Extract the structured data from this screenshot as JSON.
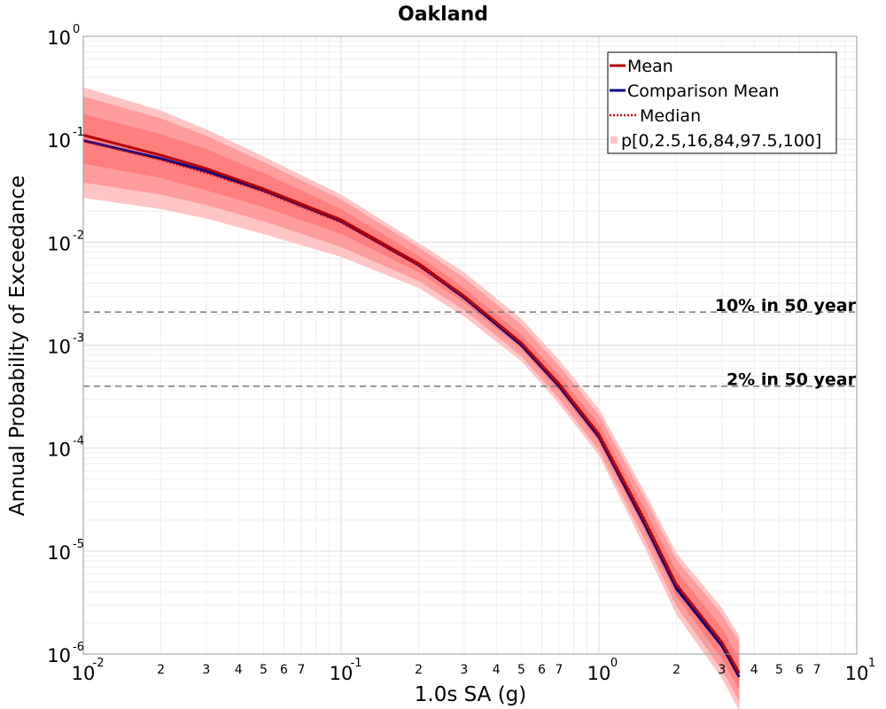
{
  "chart_data": {
    "type": "line",
    "title": "Oakland",
    "xlabel": "1.0s SA (g)",
    "ylabel": "Annual Probability of Exceedance",
    "x_scale": "log",
    "y_scale": "log",
    "xlim": [
      0.01,
      10
    ],
    "ylim": [
      1e-06,
      1
    ],
    "grid": true,
    "legend_position": "top-right",
    "x_ticks": [
      {
        "value": 0.01,
        "base": "10",
        "exp": "-2"
      },
      {
        "value": 0.1,
        "base": "10",
        "exp": "-1"
      },
      {
        "value": 1,
        "base": "10",
        "exp": "0"
      },
      {
        "value": 10,
        "base": "10",
        "exp": "1"
      }
    ],
    "x_minor_labels": [
      "2",
      "3",
      "4",
      "5",
      "6",
      "7"
    ],
    "y_ticks": [
      {
        "value": 1,
        "base": "10",
        "exp": "0"
      },
      {
        "value": 0.1,
        "base": "10",
        "exp": "-1"
      },
      {
        "value": 0.01,
        "base": "10",
        "exp": "-2"
      },
      {
        "value": 0.001,
        "base": "10",
        "exp": "-3"
      },
      {
        "value": 0.0001,
        "base": "10",
        "exp": "-4"
      },
      {
        "value": 1e-05,
        "base": "10",
        "exp": "-5"
      },
      {
        "value": 1e-06,
        "base": "10",
        "exp": "-6"
      }
    ],
    "x": [
      0.01,
      0.02,
      0.03,
      0.05,
      0.1,
      0.2,
      0.3,
      0.5,
      0.7,
      1.0,
      1.5,
      2.0,
      3.0,
      3.5
    ],
    "series": [
      {
        "name": "Mean",
        "color": "#b40000",
        "style": "solid",
        "values": [
          0.11,
          0.07,
          0.052,
          0.033,
          0.0165,
          0.0062,
          0.003,
          0.00105,
          0.00042,
          0.000135,
          2e-05,
          4.7e-06,
          1.3e-06,
          6.5e-07
        ]
      },
      {
        "name": "Comparison Mean",
        "color": "#00008b",
        "style": "solid",
        "values": [
          0.097,
          0.065,
          0.049,
          0.032,
          0.016,
          0.006,
          0.0029,
          0.001,
          0.0004,
          0.000128,
          1.85e-05,
          4.3e-06,
          1.2e-06,
          6e-07
        ]
      },
      {
        "name": "Median",
        "color": "#cc0000",
        "style": "dotted",
        "values": [
          0.096,
          0.063,
          0.047,
          0.031,
          0.0155,
          0.0059,
          0.00295,
          0.00105,
          0.00043,
          0.00014,
          2.1e-05,
          4.8e-06,
          1.3e-06,
          6.8e-07
        ]
      }
    ],
    "bands": {
      "name": "p[0,2.5,16,84,97.5,100]",
      "colors": [
        "#ffc4c4",
        "#ff9c9c",
        "#ff7e7e"
      ],
      "p0": [
        0.027,
        0.021,
        0.017,
        0.012,
        0.0072,
        0.0036,
        0.0019,
        0.0007,
        0.00027,
        8.5e-05,
        1.1e-05,
        2.4e-06,
        5.8e-07,
        2.8e-07
      ],
      "p100": [
        0.32,
        0.19,
        0.125,
        0.068,
        0.029,
        0.0098,
        0.0051,
        0.0018,
        0.00072,
        0.00024,
        3.8e-05,
        9.5e-06,
        2.8e-06,
        1.5e-06
      ],
      "p2_5": [
        0.038,
        0.029,
        0.023,
        0.016,
        0.009,
        0.0042,
        0.0022,
        0.00078,
        0.0003,
        9.5e-05,
        1.3e-05,
        2.9e-06,
        7e-07,
        3.5e-07
      ],
      "p97_5": [
        0.26,
        0.16,
        0.108,
        0.06,
        0.026,
        0.0089,
        0.0045,
        0.00158,
        0.00063,
        0.00021,
        3.3e-05,
        8.2e-06,
        2.4e-06,
        1.3e-06
      ],
      "p16": [
        0.058,
        0.042,
        0.032,
        0.022,
        0.012,
        0.0051,
        0.0026,
        0.00092,
        0.00036,
        0.000113,
        1.6e-05,
        3.6e-06,
        9e-07,
        4.5e-07
      ],
      "p84": [
        0.175,
        0.112,
        0.08,
        0.047,
        0.021,
        0.0074,
        0.0036,
        0.00126,
        0.00051,
        0.00017,
        2.6e-05,
        6.4e-06,
        1.8e-06,
        9e-07
      ]
    },
    "reference_lines": [
      {
        "label": "10% in 50 year",
        "y": 0.0021
      },
      {
        "label": "2% in 50 year",
        "y": 0.0004
      }
    ]
  }
}
